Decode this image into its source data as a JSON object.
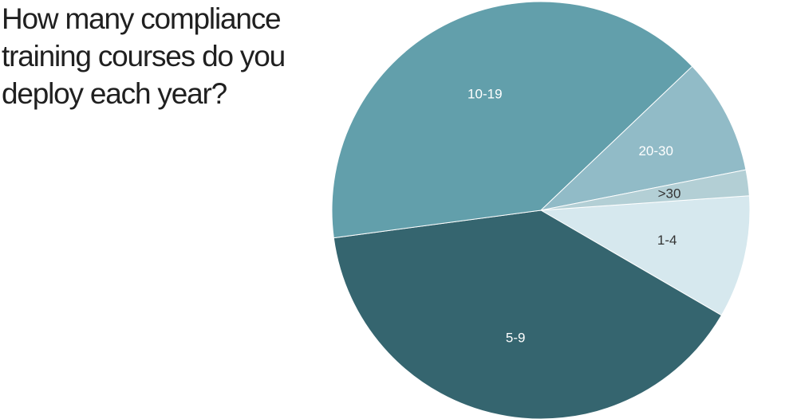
{
  "chart_data": {
    "type": "pie",
    "title": "How many compliance training courses do you deploy each year?",
    "slices": [
      {
        "label": "1-4",
        "value": 9.5,
        "color": "#d6e8ee",
        "label_color": "#333333"
      },
      {
        "label": "5-9",
        "value": 39.5,
        "color": "#35656f",
        "label_color": "#ffffff"
      },
      {
        "label": "10-19",
        "value": 40,
        "color": "#629fab",
        "label_color": "#ffffff"
      },
      {
        "label": "20-30",
        "value": 9,
        "color": "#91bbc7",
        "label_color": "#ffffff"
      },
      {
        "label": ">30",
        "value": 2,
        "color": "#b3cfd5",
        "label_color": "#333333"
      }
    ],
    "legend": "none"
  }
}
